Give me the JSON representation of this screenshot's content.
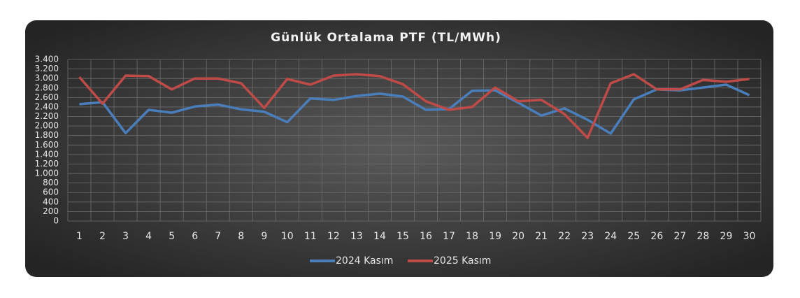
{
  "chart_data": {
    "type": "line",
    "title": "Günlük Ortalama PTF (TL/MWh)",
    "categories": [
      "1",
      "2",
      "3",
      "4",
      "5",
      "6",
      "7",
      "8",
      "9",
      "10",
      "11",
      "12",
      "13",
      "14",
      "15",
      "16",
      "17",
      "18",
      "19",
      "20",
      "21",
      "22",
      "23",
      "24",
      "25",
      "26",
      "27",
      "28",
      "29",
      "30"
    ],
    "series": [
      {
        "name": "2024 Kasım",
        "color": "#4a7ebb",
        "values": [
          2460,
          2500,
          1850,
          2340,
          2280,
          2410,
          2450,
          2350,
          2300,
          2080,
          2580,
          2550,
          2630,
          2680,
          2620,
          2340,
          2355,
          2740,
          2750,
          2490,
          2220,
          2370,
          2130,
          1840,
          2560,
          2770,
          2750,
          2810,
          2870,
          2650
        ]
      },
      {
        "name": "2025 Kasım",
        "color": "#be4b48",
        "values": [
          3030,
          2470,
          3060,
          3050,
          2770,
          3000,
          3000,
          2900,
          2380,
          2990,
          2870,
          3060,
          3090,
          3050,
          2880,
          2520,
          2340,
          2400,
          2810,
          2520,
          2550,
          2250,
          1750,
          2900,
          3090,
          2770,
          2770,
          2970,
          2930,
          2990
        ]
      }
    ],
    "ylim": [
      0,
      3400
    ],
    "yticks": [
      0,
      200,
      400,
      600,
      800,
      {
        "value": 1000,
        "label": "1.000"
      },
      {
        "value": 1200,
        "label": "1.200"
      },
      {
        "value": 1400,
        "label": "1.400"
      },
      {
        "value": 1600,
        "label": "1.600"
      },
      {
        "value": 1800,
        "label": "1.800"
      },
      {
        "value": 2000,
        "label": "2.000"
      },
      {
        "value": 2200,
        "label": "2.200"
      },
      {
        "value": 2400,
        "label": "2.400"
      },
      {
        "value": 2600,
        "label": "2.600"
      },
      {
        "value": 2800,
        "label": "2.800"
      },
      {
        "value": 3000,
        "label": "3.000"
      },
      {
        "value": 3200,
        "label": "3.200"
      },
      {
        "value": 3400,
        "label": "3.400"
      }
    ],
    "grid": true,
    "legend": "bottom"
  }
}
